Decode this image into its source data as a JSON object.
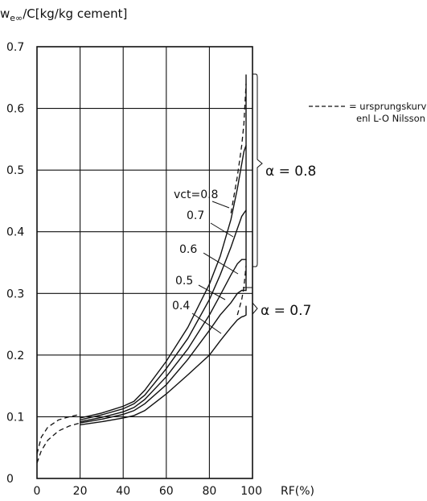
{
  "chart_data": {
    "type": "line",
    "ylabel": "w",
    "ylabel_sub": "e∞",
    "ylabel_rest": "/C[kg/kg cement]",
    "xlabel": "RF(%)",
    "xlim": [
      0,
      100
    ],
    "ylim": [
      0,
      0.7
    ],
    "grid": true,
    "x_ticks": [
      "0",
      "20",
      "40",
      "60",
      "80",
      "100"
    ],
    "y_ticks": [
      "0",
      "0.1",
      "0.2",
      "0.3",
      "0.4",
      "0.5",
      "0.6",
      "0.7"
    ],
    "series": [
      {
        "name": "vct=0.8",
        "x": [
          20,
          30,
          40,
          45,
          50,
          60,
          70,
          80,
          85,
          90,
          93,
          95,
          96,
          97,
          97
        ],
        "y": [
          0.098,
          0.106,
          0.117,
          0.125,
          0.143,
          0.19,
          0.245,
          0.315,
          0.36,
          0.42,
          0.47,
          0.51,
          0.53,
          0.54,
          0.655
        ]
      },
      {
        "name": "0.7",
        "x": [
          20,
          30,
          40,
          45,
          50,
          60,
          70,
          80,
          85,
          90,
          93,
          95,
          96,
          97,
          97
        ],
        "y": [
          0.095,
          0.103,
          0.113,
          0.121,
          0.135,
          0.178,
          0.227,
          0.29,
          0.33,
          0.375,
          0.405,
          0.425,
          0.43,
          0.435,
          0.54
        ]
      },
      {
        "name": "0.6",
        "x": [
          20,
          30,
          40,
          45,
          50,
          60,
          70,
          80,
          85,
          90,
          93,
          95,
          96,
          97,
          97
        ],
        "y": [
          0.092,
          0.099,
          0.108,
          0.115,
          0.128,
          0.165,
          0.21,
          0.265,
          0.297,
          0.33,
          0.348,
          0.355,
          0.355,
          0.355,
          0.435
        ]
      },
      {
        "name": "0.5",
        "x": [
          20,
          30,
          40,
          45,
          50,
          60,
          70,
          80,
          85,
          90,
          93,
          95,
          96,
          97,
          97
        ],
        "y": [
          0.09,
          0.096,
          0.104,
          0.11,
          0.121,
          0.152,
          0.193,
          0.24,
          0.265,
          0.285,
          0.3,
          0.305,
          0.305,
          0.305,
          0.355
        ]
      },
      {
        "name": "0.4",
        "x": [
          20,
          30,
          40,
          45,
          50,
          60,
          70,
          80,
          85,
          90,
          93,
          95,
          96,
          97,
          97
        ],
        "y": [
          0.087,
          0.092,
          0.098,
          0.102,
          0.11,
          0.137,
          0.168,
          0.2,
          0.223,
          0.245,
          0.257,
          0.262,
          0.263,
          0.265,
          0.28
        ]
      },
      {
        "name": "ursprungskurva enl L-O Nilsson (upper)",
        "style": "dashed",
        "x": [
          0,
          2,
          5,
          10,
          15,
          20
        ],
        "y": [
          0.04,
          0.067,
          0.083,
          0.095,
          0.1,
          0.104
        ]
      },
      {
        "name": "ursprungskurva enl L-O Nilsson (lower)",
        "style": "dashed",
        "x": [
          0,
          2,
          5,
          10,
          15,
          20
        ],
        "y": [
          0.025,
          0.045,
          0.062,
          0.077,
          0.085,
          0.09
        ]
      },
      {
        "name": "ursprungskurva enl L-O Nilsson (right, upper)",
        "style": "dashed",
        "x": [
          90,
          93,
          95,
          96,
          97
        ],
        "y": [
          0.43,
          0.49,
          0.54,
          0.575,
          0.64
        ]
      },
      {
        "name": "ursprungskurva enl L-O Nilsson (right, lower)",
        "style": "dashed",
        "x": [
          93,
          95,
          96,
          97
        ],
        "y": [
          0.265,
          0.29,
          0.31,
          0.345
        ]
      }
    ],
    "annotations": {
      "vct_labels": [
        "vct=0.8",
        "0.7",
        "0.6",
        "0.5",
        "0.4"
      ],
      "alpha_high": "α = 0.8",
      "alpha_low": "α = 0.7",
      "legend_line1": "= ursprungskurva",
      "legend_line2": "enl L-O Nilsson"
    }
  }
}
